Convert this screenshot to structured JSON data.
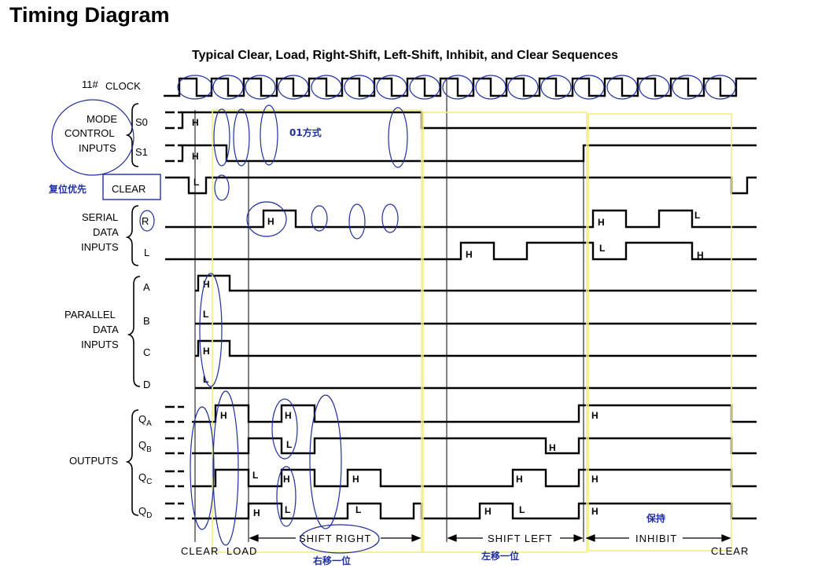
{
  "page_title": "Timing Diagram",
  "subtitle": "Typical Clear, Load, Right-Shift, Left-Shift, Inhibit, and Clear Sequences",
  "signals": {
    "clock": "CLOCK",
    "clock_pin": "11#",
    "mode_group": [
      "MODE",
      "CONTROL",
      "INPUTS"
    ],
    "s0": "S0",
    "s1": "S1",
    "clear": "CLEAR",
    "serial_group": [
      "SERIAL",
      "DATA",
      "INPUTS"
    ],
    "r": "R",
    "l": "L",
    "parallel_group": [
      "PARALLEL",
      "DATA",
      "INPUTS"
    ],
    "a": "A",
    "b": "B",
    "c": "C",
    "d": "D",
    "outputs_group": "OUTPUTS",
    "qa": "Q",
    "qa_sub": "A",
    "qb": "Q",
    "qb_sub": "B",
    "qc": "Q",
    "qc_sub": "C",
    "qd": "Q",
    "qd_sub": "D"
  },
  "levels": {
    "s0": "H",
    "s1": "H",
    "clear": "L",
    "r_h": "H",
    "l_h": "H",
    "rin_h1": "H",
    "rin_l": "L",
    "lin_l": "L",
    "lin_h": "H",
    "a": "H",
    "b": "L",
    "c": "H",
    "d": "L",
    "qa_h1": "H",
    "qa_h2": "H",
    "qa_h3": "H",
    "qb_l": "L",
    "qb_h": "H",
    "qc_l": "L",
    "qc_h1": "H",
    "qc_h2": "H",
    "qc_h3": "H",
    "qc_h4": "H",
    "qd_h1": "H",
    "qd_l1": "L",
    "qd_l2": "L",
    "qd_h2": "H",
    "qd_l3": "L",
    "qd_h3": "H"
  },
  "sequences": {
    "clear1": "CLEAR",
    "load": "LOAD",
    "shift_right": "SHIFT RIGHT",
    "shift_left": "SHIFT LEFT",
    "inhibit": "INHIBIT",
    "clear2": "CLEAR"
  },
  "annotations": {
    "mode_01": "01方式",
    "clear_priority": "复位优先",
    "shift_right_cn": "右移一位",
    "shift_left_cn": "左移一位",
    "hold_cn": "保持"
  },
  "colors": {
    "waveform": "#000000",
    "annotation_ink": "#1f2f9f",
    "highlight_box": "#f2ee7a"
  }
}
